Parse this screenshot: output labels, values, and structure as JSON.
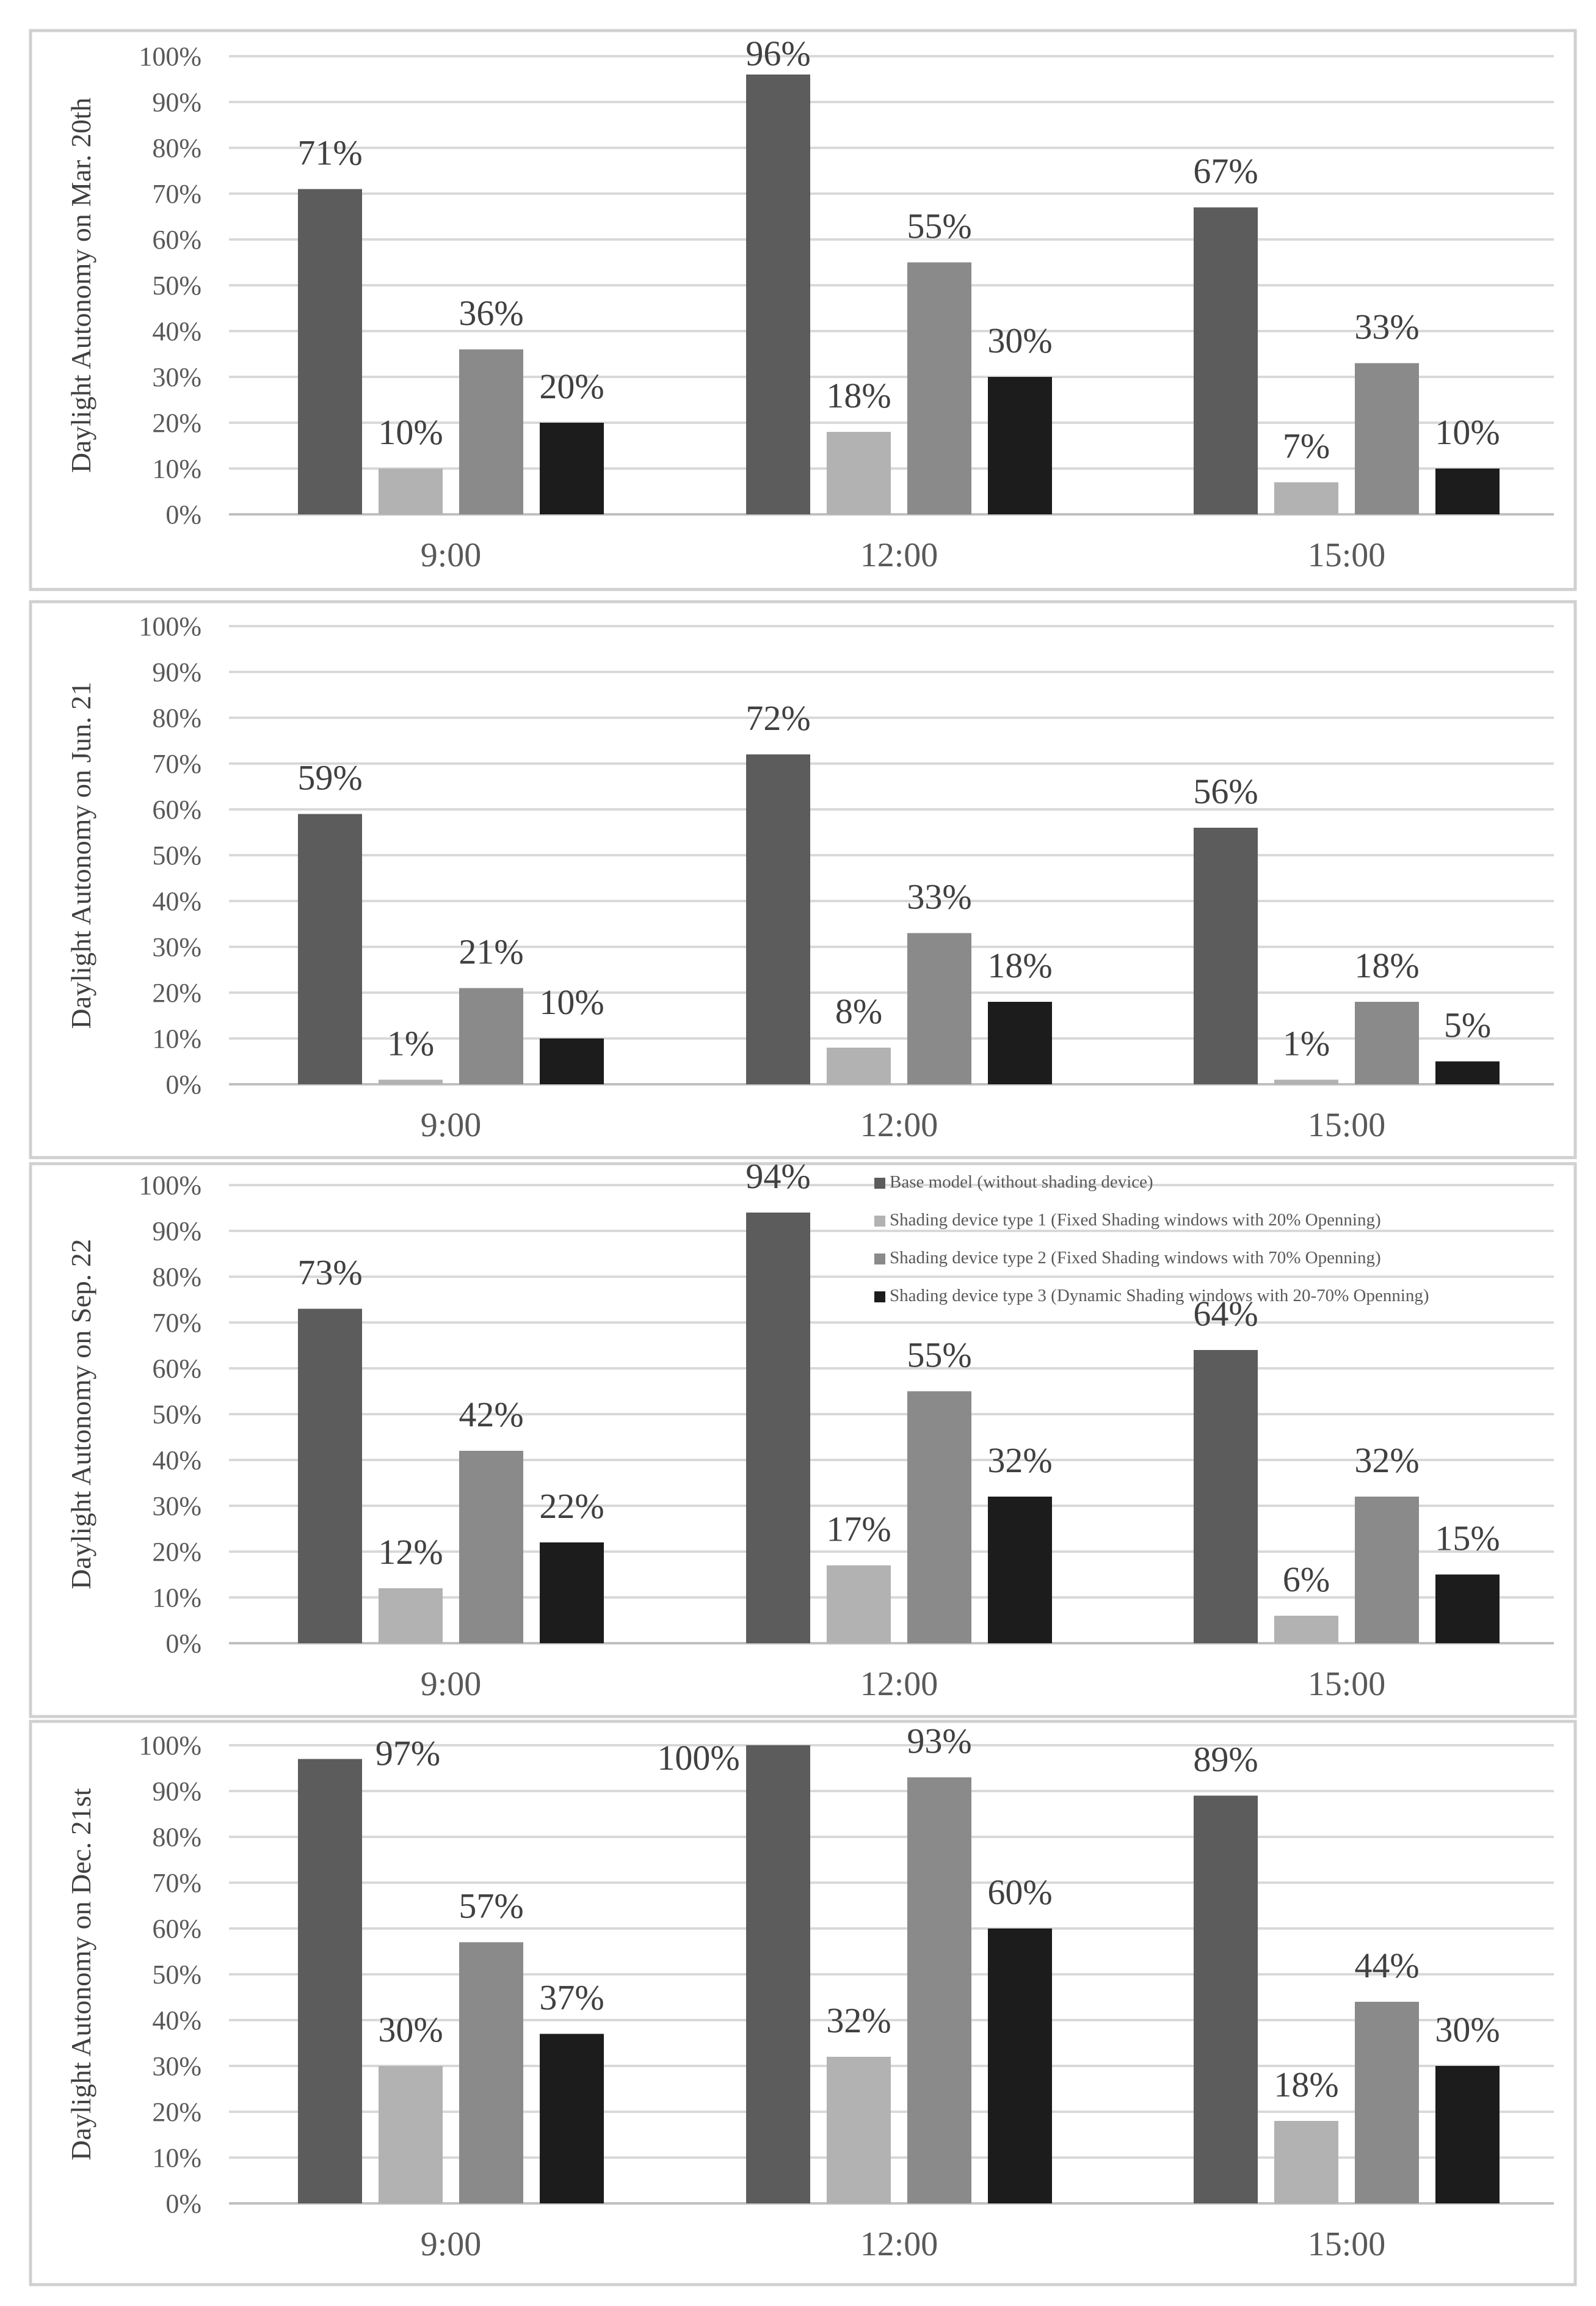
{
  "colors": {
    "base": "#5c5c5c",
    "type1": "#b2b2b2",
    "type2": "#8a8a8a",
    "type3": "#1c1c1c",
    "grid": "#d9d9d9",
    "frame": "#d0d0d0",
    "text": "#595959"
  },
  "legend": [
    {
      "key": "base",
      "label": "Base model (without shading device)"
    },
    {
      "key": "type1",
      "label": "Shading device type 1 (Fixed Shading windows with 20% Openning)"
    },
    {
      "key": "type2",
      "label": "Shading device type 2 (Fixed Shading windows with 70% Openning)"
    },
    {
      "key": "type3",
      "label": "Shading device type 3 (Dynamic Shading windows with 20-70% Openning)"
    }
  ],
  "chart_data": [
    {
      "type": "bar",
      "ylabel": "Daylight Autonomy on Mar. 20th",
      "categories": [
        "9:00",
        "12:00",
        "15:00"
      ],
      "yticks": [
        "0%",
        "10%",
        "20%",
        "30%",
        "40%",
        "50%",
        "60%",
        "70%",
        "80%",
        "90%",
        "100%"
      ],
      "ylim": [
        0,
        100
      ],
      "series": [
        {
          "key": "base",
          "name": "Base model (without shading device)",
          "values": [
            71,
            96,
            67
          ],
          "labels": [
            "71%",
            "96%",
            "67%"
          ]
        },
        {
          "key": "type1",
          "name": "Shading device type 1 (Fixed Shading windows with 20% Openning)",
          "values": [
            10,
            18,
            7
          ],
          "labels": [
            "10%",
            "18%",
            "7%"
          ]
        },
        {
          "key": "type2",
          "name": "Shading device type 2 (Fixed Shading windows with 70% Openning)",
          "values": [
            36,
            55,
            33
          ],
          "labels": [
            "36%",
            "55%",
            "33%"
          ]
        },
        {
          "key": "type3",
          "name": "Shading device type 3 (Dynamic Shading windows with 20-70% Openning)",
          "values": [
            20,
            30,
            10
          ],
          "labels": [
            "20%",
            "30%",
            "10%"
          ]
        }
      ]
    },
    {
      "type": "bar",
      "ylabel": "Daylight Autonomy on Jun. 21",
      "categories": [
        "9:00",
        "12:00",
        "15:00"
      ],
      "yticks": [
        "0%",
        "10%",
        "20%",
        "30%",
        "40%",
        "50%",
        "60%",
        "70%",
        "80%",
        "90%",
        "100%"
      ],
      "ylim": [
        0,
        100
      ],
      "series": [
        {
          "key": "base",
          "name": "Base model (without shading device)",
          "values": [
            59,
            72,
            56
          ],
          "labels": [
            "59%",
            "72%",
            "56%"
          ]
        },
        {
          "key": "type1",
          "name": "Shading device type 1 (Fixed Shading windows with 20% Openning)",
          "values": [
            1,
            8,
            1
          ],
          "labels": [
            "1%",
            "8%",
            "1%"
          ]
        },
        {
          "key": "type2",
          "name": "Shading device type 2 (Fixed Shading windows with 70% Openning)",
          "values": [
            21,
            33,
            18
          ],
          "labels": [
            "21%",
            "33%",
            "18%"
          ]
        },
        {
          "key": "type3",
          "name": "Shading device type 3 (Dynamic Shading windows with 20-70% Openning)",
          "values": [
            10,
            18,
            5
          ],
          "labels": [
            "10%",
            "18%",
            "5%"
          ]
        }
      ]
    },
    {
      "type": "bar",
      "ylabel": "Daylight Autonomy on Sep. 22",
      "categories": [
        "9:00",
        "12:00",
        "15:00"
      ],
      "yticks": [
        "0%",
        "10%",
        "20%",
        "30%",
        "40%",
        "50%",
        "60%",
        "70%",
        "80%",
        "90%",
        "100%"
      ],
      "ylim": [
        0,
        100
      ],
      "legend_position": "top-right",
      "series": [
        {
          "key": "base",
          "name": "Base model (without shading device)",
          "values": [
            73,
            94,
            64
          ],
          "labels": [
            "73%",
            "94%",
            "64%"
          ]
        },
        {
          "key": "type1",
          "name": "Shading device type 1 (Fixed Shading windows with 20% Openning)",
          "values": [
            12,
            17,
            6
          ],
          "labels": [
            "12%",
            "17%",
            "6%"
          ]
        },
        {
          "key": "type2",
          "name": "Shading device type 2 (Fixed Shading windows with 70% Openning)",
          "values": [
            42,
            55,
            32
          ],
          "labels": [
            "42%",
            "55%",
            "32%"
          ]
        },
        {
          "key": "type3",
          "name": "Shading device type 3 (Dynamic Shading windows with 20-70% Openning)",
          "values": [
            22,
            32,
            15
          ],
          "labels": [
            "22%",
            "32%",
            "15%"
          ]
        }
      ]
    },
    {
      "type": "bar",
      "ylabel": "Daylight Autonomy on Dec. 21st",
      "categories": [
        "9:00",
        "12:00",
        "15:00"
      ],
      "yticks": [
        "0%",
        "10%",
        "20%",
        "30%",
        "40%",
        "50%",
        "60%",
        "70%",
        "80%",
        "90%",
        "100%"
      ],
      "ylim": [
        0,
        100
      ],
      "series": [
        {
          "key": "base",
          "name": "Base model (without shading device)",
          "values": [
            97,
            100,
            89
          ],
          "labels": [
            "97%",
            "100%",
            "89%"
          ]
        },
        {
          "key": "type1",
          "name": "Shading device type 1 (Fixed Shading windows with 20% Openning)",
          "values": [
            30,
            32,
            18
          ],
          "labels": [
            "30%",
            "32%",
            "18%"
          ]
        },
        {
          "key": "type2",
          "name": "Shading device type 2 (Fixed Shading windows with 70% Openning)",
          "values": [
            57,
            93,
            44
          ],
          "labels": [
            "57%",
            "93%",
            "44%"
          ]
        },
        {
          "key": "type3",
          "name": "Shading device type 3 (Dynamic Shading windows with 20-70% Openning)",
          "values": [
            37,
            60,
            30
          ],
          "labels": [
            "37%",
            "60%",
            "30%"
          ]
        }
      ]
    }
  ]
}
